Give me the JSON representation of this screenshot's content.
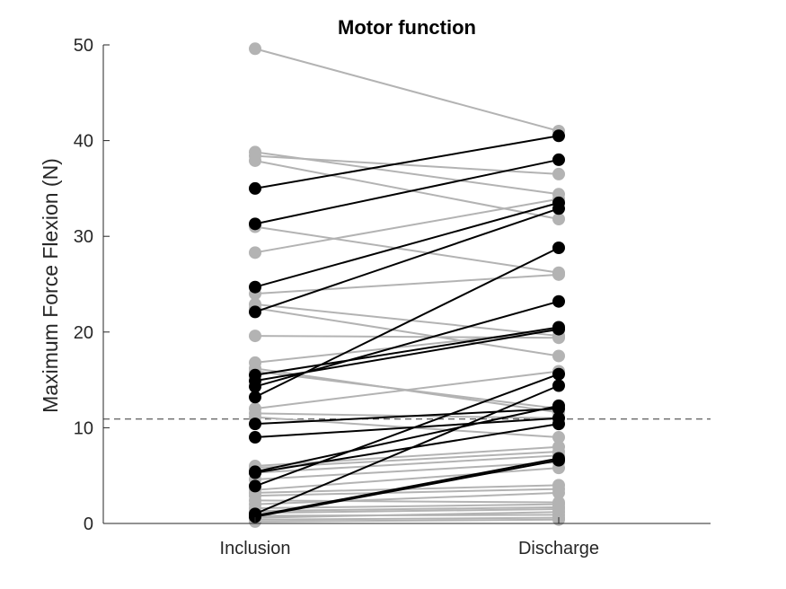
{
  "chart_data": {
    "type": "line",
    "title": "Motor function",
    "xlabel": "",
    "ylabel": "Maximum Force Flexion (N)",
    "categories": [
      "Inclusion",
      "Discharge"
    ],
    "ylim": [
      0,
      50
    ],
    "yticks": [
      0,
      10,
      20,
      30,
      40,
      50
    ],
    "grid": false,
    "reference_line": {
      "y": 10.9,
      "style": "dashed"
    },
    "colors": {
      "responder": "#000000",
      "non_responder": "#b3b3b3",
      "axis": "#262626",
      "reference": "#333333"
    },
    "series_gray": [
      {
        "values": [
          49.6,
          41.0
        ]
      },
      {
        "values": [
          38.8,
          34.4
        ]
      },
      {
        "values": [
          38.4,
          36.5
        ]
      },
      {
        "values": [
          37.9,
          31.8
        ]
      },
      {
        "values": [
          31.0,
          26.2
        ]
      },
      {
        "values": [
          28.3,
          33.9
        ]
      },
      {
        "values": [
          24.0,
          26.0
        ]
      },
      {
        "values": [
          22.9,
          19.6
        ]
      },
      {
        "values": [
          22.5,
          17.5
        ]
      },
      {
        "values": [
          19.6,
          19.4
        ]
      },
      {
        "values": [
          16.8,
          20.2
        ]
      },
      {
        "values": [
          16.2,
          11.6
        ]
      },
      {
        "values": [
          15.9,
          12.0
        ]
      },
      {
        "values": [
          12.0,
          15.9
        ]
      },
      {
        "values": [
          11.5,
          11.0
        ]
      },
      {
        "values": [
          11.1,
          9.0
        ]
      },
      {
        "values": [
          6.0,
          8.0
        ]
      },
      {
        "values": [
          5.8,
          7.5
        ]
      },
      {
        "values": [
          5.3,
          7.1
        ]
      },
      {
        "values": [
          4.6,
          6.4
        ]
      },
      {
        "values": [
          3.5,
          5.8
        ]
      },
      {
        "values": [
          3.2,
          4.0
        ]
      },
      {
        "values": [
          2.9,
          3.6
        ]
      },
      {
        "values": [
          2.4,
          2.2
        ]
      },
      {
        "values": [
          2.0,
          3.2
        ]
      },
      {
        "values": [
          1.6,
          2.0
        ]
      },
      {
        "values": [
          1.3,
          1.7
        ]
      },
      {
        "values": [
          1.1,
          1.5
        ]
      },
      {
        "values": [
          0.8,
          0.9
        ]
      },
      {
        "values": [
          0.6,
          1.2
        ]
      },
      {
        "values": [
          0.4,
          0.6
        ]
      },
      {
        "values": [
          0.2,
          0.4
        ]
      }
    ],
    "series_black": [
      {
        "values": [
          35.0,
          40.5
        ]
      },
      {
        "values": [
          31.3,
          38.0
        ]
      },
      {
        "values": [
          24.7,
          33.5
        ]
      },
      {
        "values": [
          22.1,
          32.9
        ]
      },
      {
        "values": [
          15.5,
          20.5
        ]
      },
      {
        "values": [
          14.9,
          20.3
        ]
      },
      {
        "values": [
          14.3,
          23.2
        ]
      },
      {
        "values": [
          13.2,
          28.8
        ]
      },
      {
        "values": [
          10.4,
          12.0
        ]
      },
      {
        "values": [
          9.0,
          11.0
        ]
      },
      {
        "values": [
          5.4,
          12.3
        ]
      },
      {
        "values": [
          5.3,
          10.4
        ]
      },
      {
        "values": [
          3.9,
          15.6
        ]
      },
      {
        "values": [
          1.0,
          14.4
        ]
      },
      {
        "values": [
          0.8,
          6.8
        ]
      },
      {
        "values": [
          0.7,
          6.6
        ]
      }
    ]
  }
}
